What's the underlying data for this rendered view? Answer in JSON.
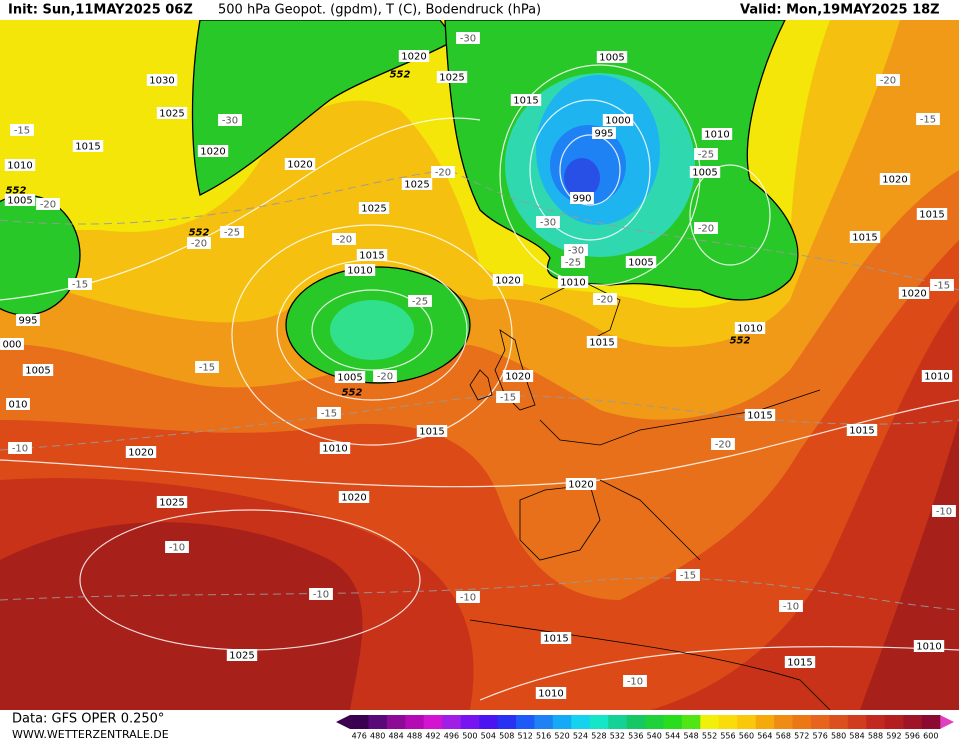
{
  "header": {
    "init": "Init: Sun,11MAY2025 06Z",
    "title": "500 hPa Geopot. (gpdm), T (C), Bodendruck (hPa)",
    "valid": "Valid: Mon,19MAY2025 18Z"
  },
  "map": {
    "labels": [
      "1020",
      "-30",
      "552",
      "1025",
      "1005",
      "1030",
      "1025",
      "-30",
      "1015",
      "1000",
      "1010",
      "-20",
      "-15",
      "-15",
      "1015",
      "1020",
      "1020",
      "995",
      "-25",
      "1005",
      "1020",
      "1010",
      "1025",
      "-20",
      "990",
      "552",
      "1005",
      "-20",
      "1025",
      "1015",
      "-30",
      "-25",
      "552",
      "-20",
      "-20",
      "-20",
      "1015",
      "1015",
      "-30",
      "-25",
      "1005",
      "1010",
      "1020",
      "1010",
      "-15",
      "1020",
      "-15",
      "-20",
      "-25",
      "995",
      "1010",
      "552",
      "000",
      "1015",
      "-15",
      "1005",
      "1005",
      "-20",
      "1020",
      "1010",
      "552",
      "-15",
      "010",
      "-15",
      "1015",
      "1015",
      "1015",
      "-20",
      "1010",
      "-10",
      "1020",
      "1020",
      "1020",
      "1025",
      "-10",
      "-10",
      "-15",
      "-10",
      "-10",
      "-10",
      "1015",
      "1010",
      "1025",
      "1015",
      "-10",
      "1010"
    ]
  },
  "footer": {
    "data": "Data: GFS OPER 0.250°",
    "site": "WWW.WETTERZENTRALE.DE"
  },
  "colorbar": {
    "ticks": [
      476,
      480,
      484,
      488,
      492,
      496,
      500,
      504,
      508,
      512,
      516,
      520,
      524,
      528,
      532,
      536,
      540,
      544,
      548,
      552,
      556,
      560,
      564,
      568,
      572,
      576,
      580,
      584,
      588,
      592,
      596,
      600
    ],
    "colors": [
      "#3c0050",
      "#5a0a78",
      "#8c0a96",
      "#b40ab4",
      "#d214d2",
      "#a01ee6",
      "#7814f0",
      "#4b14f0",
      "#2832f0",
      "#1e5af5",
      "#1e82f5",
      "#14aaf5",
      "#14d2f0",
      "#14e6c8",
      "#14d296",
      "#14c864",
      "#1ed23c",
      "#28dc1e",
      "#50e614",
      "#f0f00a",
      "#fadc0a",
      "#fac80a",
      "#f5aa0a",
      "#f08c14",
      "#eb7814",
      "#e6641e",
      "#dc501e",
      "#d23c1e",
      "#c3281e",
      "#b41e1e",
      "#a01428",
      "#8c0a32"
    ]
  }
}
